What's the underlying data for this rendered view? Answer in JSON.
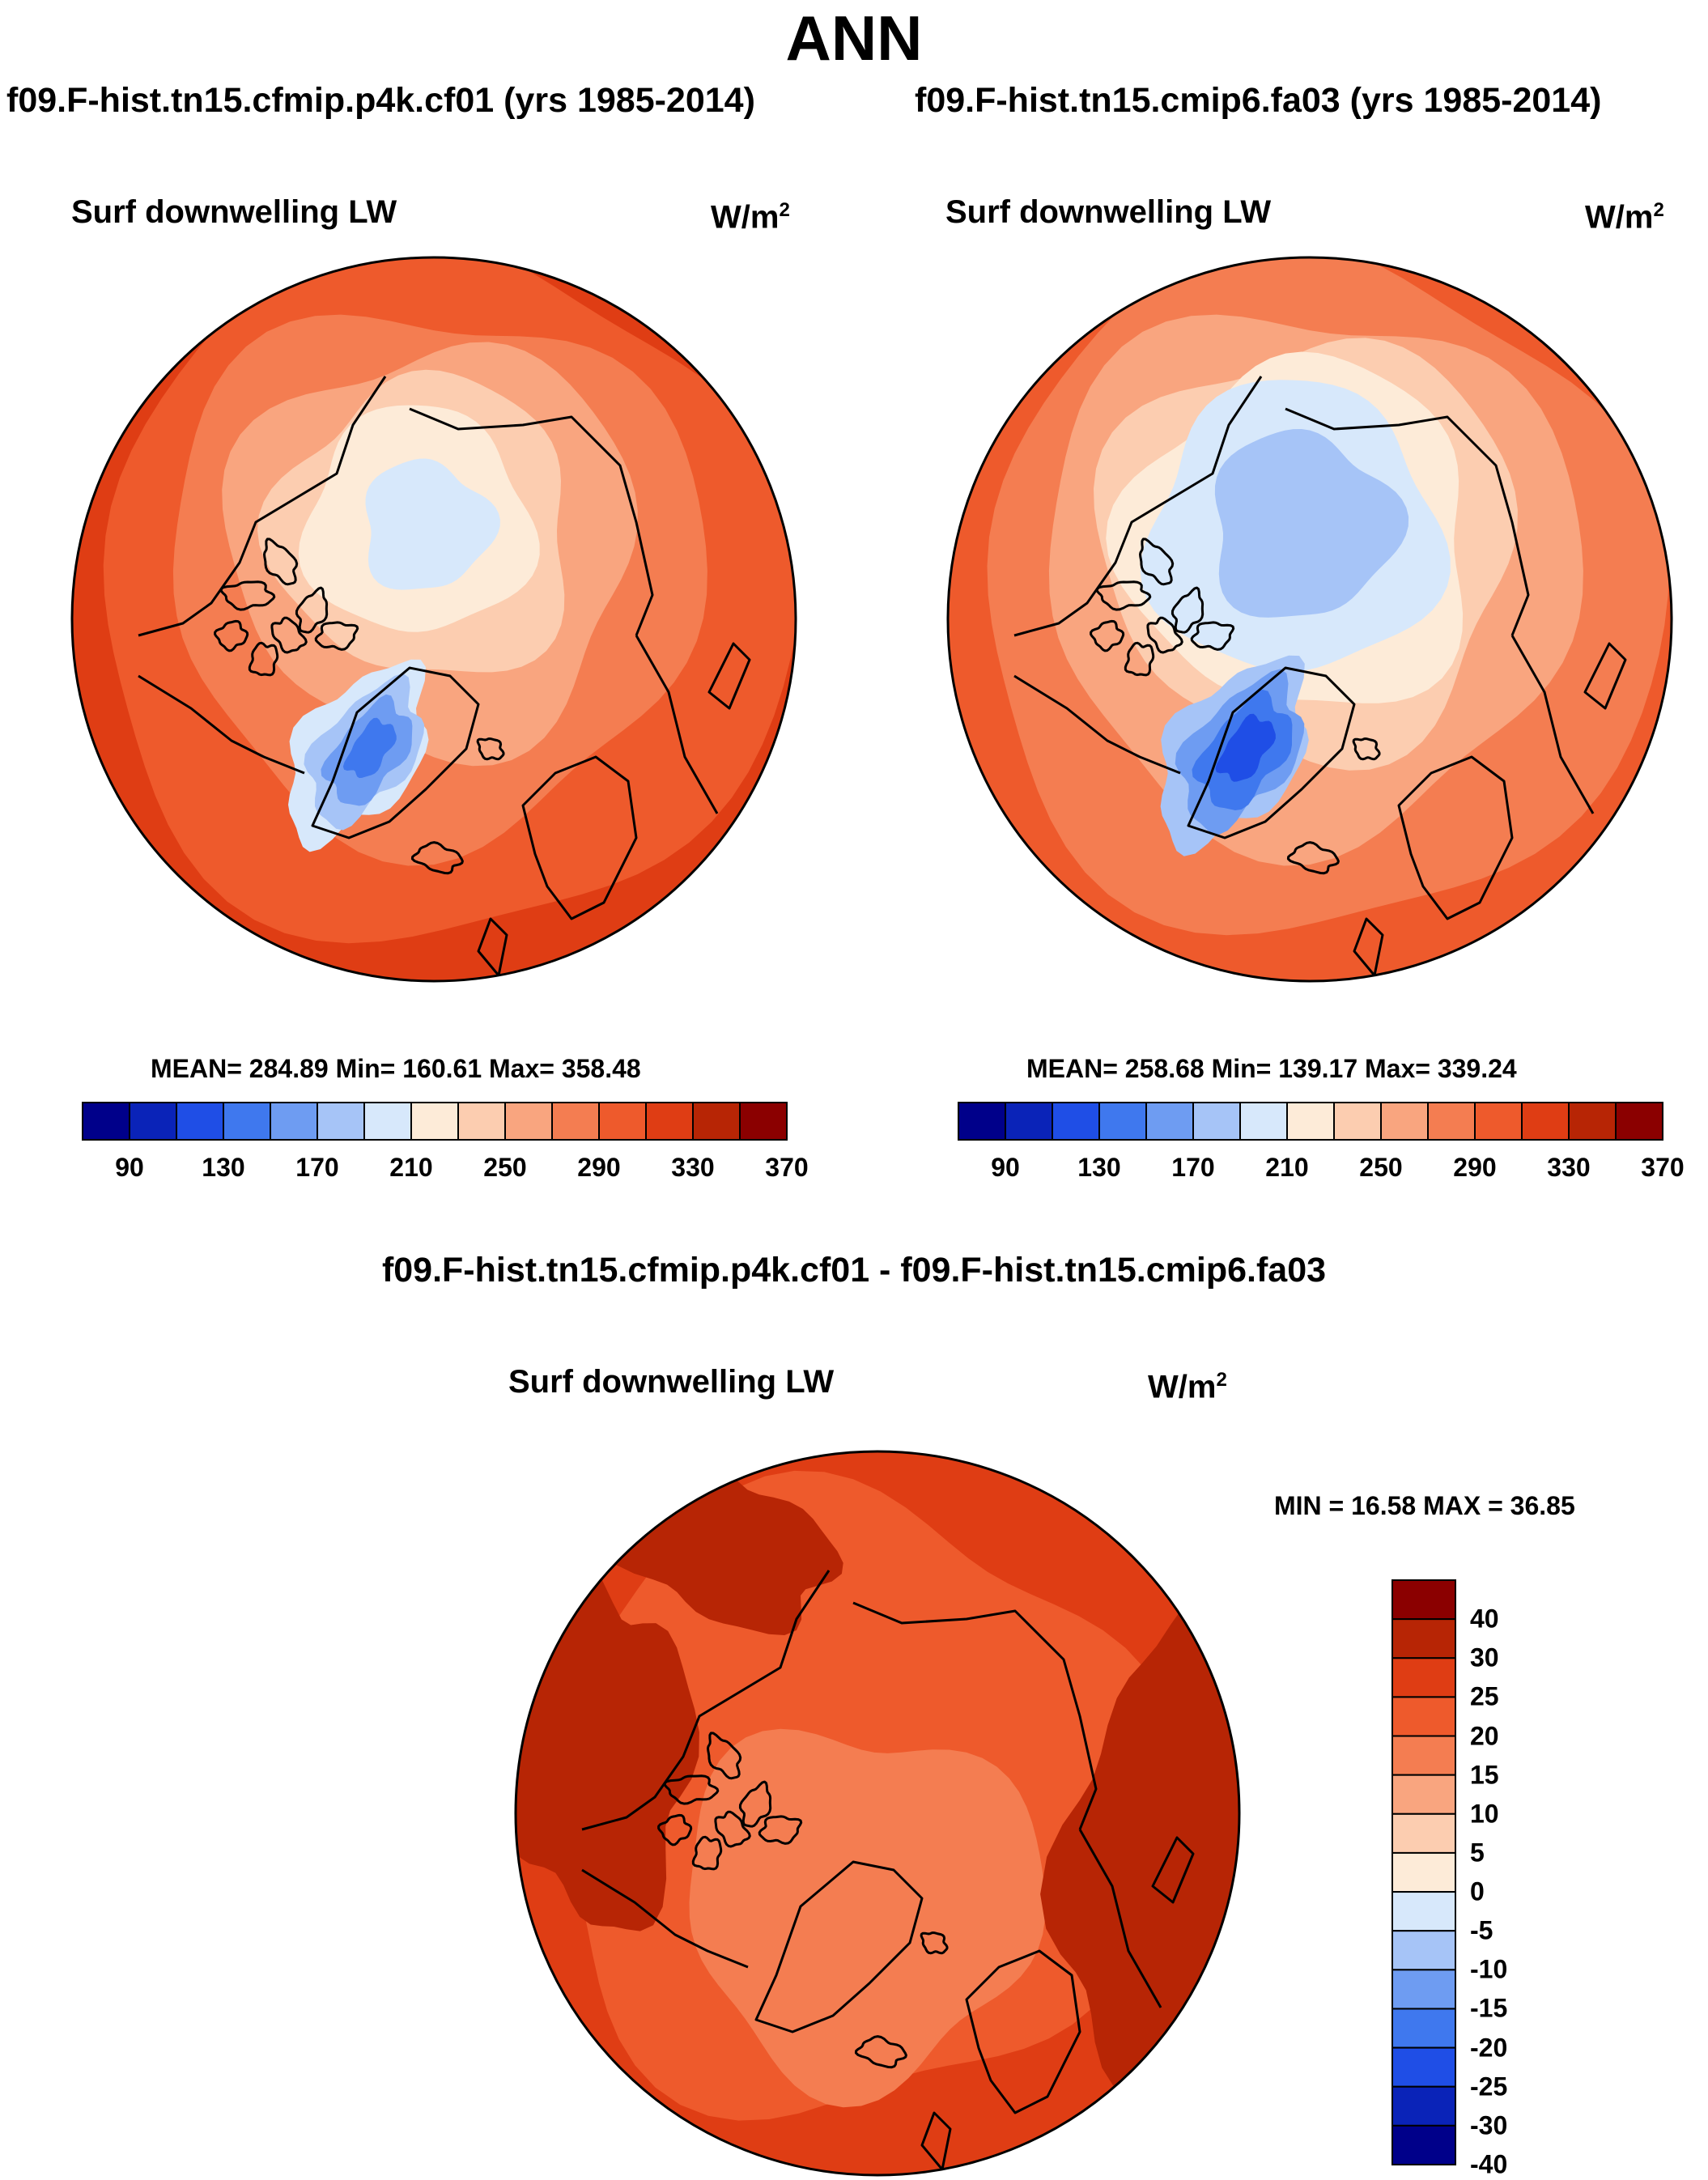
{
  "season": "ANN",
  "units_base": "W/m",
  "units_exp": "2",
  "panels": [
    {
      "case_title": "f09.F-hist.tn15.cfmip.p4k.cf01 (yrs 1985-2014)",
      "var_label": "Surf downwelling LW",
      "stats": "MEAN= 284.89  Min= 160.61  Max= 358.48",
      "colorbar_ticks": [
        "90",
        "130",
        "170",
        "210",
        "250",
        "290",
        "330",
        "370"
      ]
    },
    {
      "case_title": "f09.F-hist.tn15.cmip6.fa03 (yrs 1985-2014)",
      "var_label": "Surf downwelling LW",
      "stats": "MEAN= 258.68  Min= 139.17  Max= 339.24",
      "colorbar_ticks": [
        "90",
        "130",
        "170",
        "210",
        "250",
        "290",
        "330",
        "370"
      ]
    }
  ],
  "diff": {
    "title": "f09.F-hist.tn15.cfmip.p4k.cf01 - f09.F-hist.tn15.cmip6.fa03",
    "var_label": "Surf downwelling LW",
    "stats": "MIN =  16.58 MAX =  36.85",
    "colorbar_ticks": [
      "40",
      "30",
      "25",
      "20",
      "15",
      "10",
      "5",
      "0",
      "-5",
      "-10",
      "-15",
      "-20",
      "-25",
      "-30",
      "-40"
    ]
  },
  "colors": {
    "abs_scale": [
      "#00008a",
      "#0a23b8",
      "#1f4ee6",
      "#3f78ee",
      "#6e9cf2",
      "#a6c4f7",
      "#d7e8fb",
      "#fdebd8",
      "#fccdb0",
      "#f9a57f",
      "#f47d51",
      "#ee5a2c",
      "#df3d14",
      "#b72505",
      "#8b0000"
    ],
    "diff_scale": [
      "#8b0000",
      "#b72505",
      "#df3d14",
      "#ee5a2c",
      "#f47d51",
      "#f9a57f",
      "#fccdb0",
      "#fdebd8",
      "#d7e8fb",
      "#a6c4f7",
      "#6e9cf2",
      "#3f78ee",
      "#1f4ee6",
      "#0a23b8",
      "#00008a"
    ]
  }
}
